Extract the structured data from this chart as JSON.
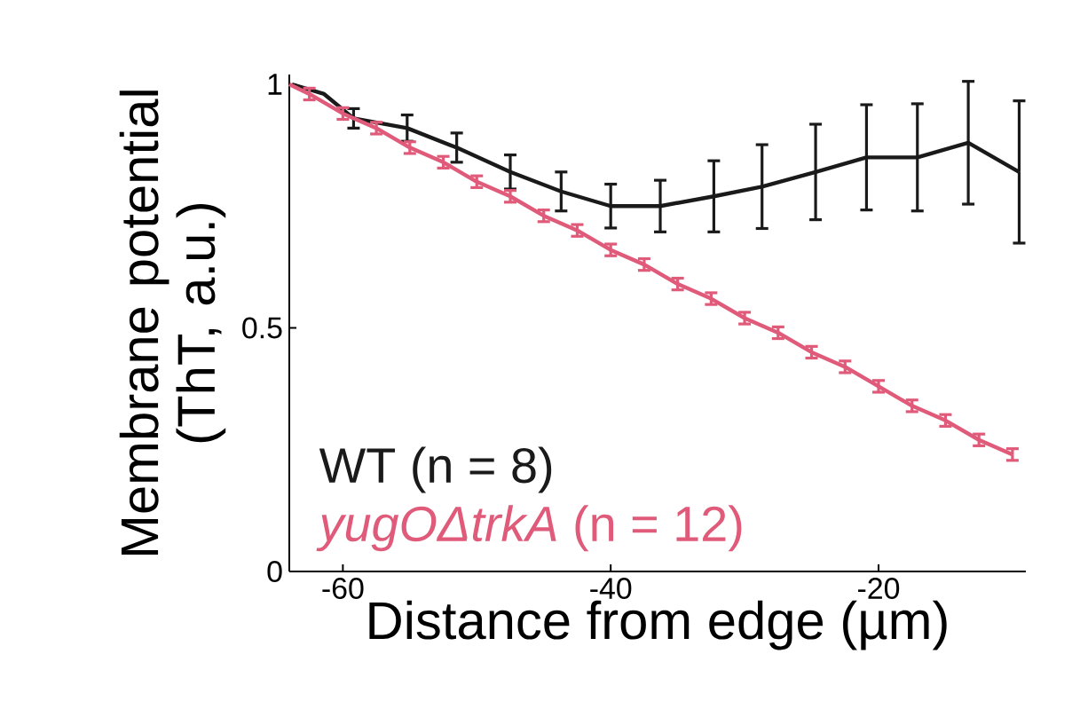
{
  "chart_data": {
    "type": "line",
    "xlabel": "Distance from edge (µm)",
    "ylabel": "Membrane potential (ThT, a.u.)",
    "xlim": [
      -64,
      -9
    ],
    "ylim": [
      0,
      1.02
    ],
    "xticks": [
      -60,
      -40,
      -20
    ],
    "yticks": [
      0,
      0.5,
      1
    ],
    "grid": false,
    "legend": "bottom left",
    "marker": "none",
    "line_style": "solid",
    "series": [
      {
        "name": "WT (n = 8)",
        "color": "#1a1a1a",
        "x": [
          -63.8,
          -61.4,
          -59.2,
          -55.2,
          -51.5,
          -47.5,
          -43.7,
          -40.0,
          -36.3,
          -32.3,
          -28.7,
          -24.7,
          -20.9,
          -17.1,
          -13.3,
          -9.5
        ],
        "values": [
          1.0,
          0.98,
          0.93,
          0.91,
          0.87,
          0.82,
          0.78,
          0.75,
          0.75,
          0.77,
          0.79,
          0.82,
          0.85,
          0.85,
          0.88,
          0.82
        ],
        "errors": [
          null,
          null,
          0.02,
          0.027,
          0.03,
          0.035,
          0.04,
          0.045,
          0.053,
          0.073,
          0.086,
          0.098,
          0.108,
          0.11,
          0.126,
          0.146
        ]
      },
      {
        "name": "*yugOΔtrkA* (n = 12)",
        "color": "#e05a7a",
        "x": [
          -64,
          -62.5,
          -60,
          -57.5,
          -55,
          -52.5,
          -50,
          -47.5,
          -45,
          -42.5,
          -40,
          -37.5,
          -35,
          -32.5,
          -30,
          -27.5,
          -25,
          -22.5,
          -20,
          -17.5,
          -15,
          -12.5,
          -10
        ],
        "values": [
          1.0,
          0.98,
          0.94,
          0.91,
          0.87,
          0.84,
          0.8,
          0.77,
          0.73,
          0.7,
          0.66,
          0.63,
          0.59,
          0.56,
          0.52,
          0.49,
          0.45,
          0.42,
          0.38,
          0.34,
          0.31,
          0.27,
          0.24
        ],
        "errors": [
          null,
          0.012,
          0.012,
          0.012,
          0.012,
          0.012,
          0.012,
          0.012,
          0.012,
          0.012,
          0.012,
          0.012,
          0.012,
          0.012,
          0.012,
          0.012,
          0.012,
          0.012,
          0.012,
          0.012,
          0.012,
          0.012,
          0.012
        ]
      }
    ]
  }
}
